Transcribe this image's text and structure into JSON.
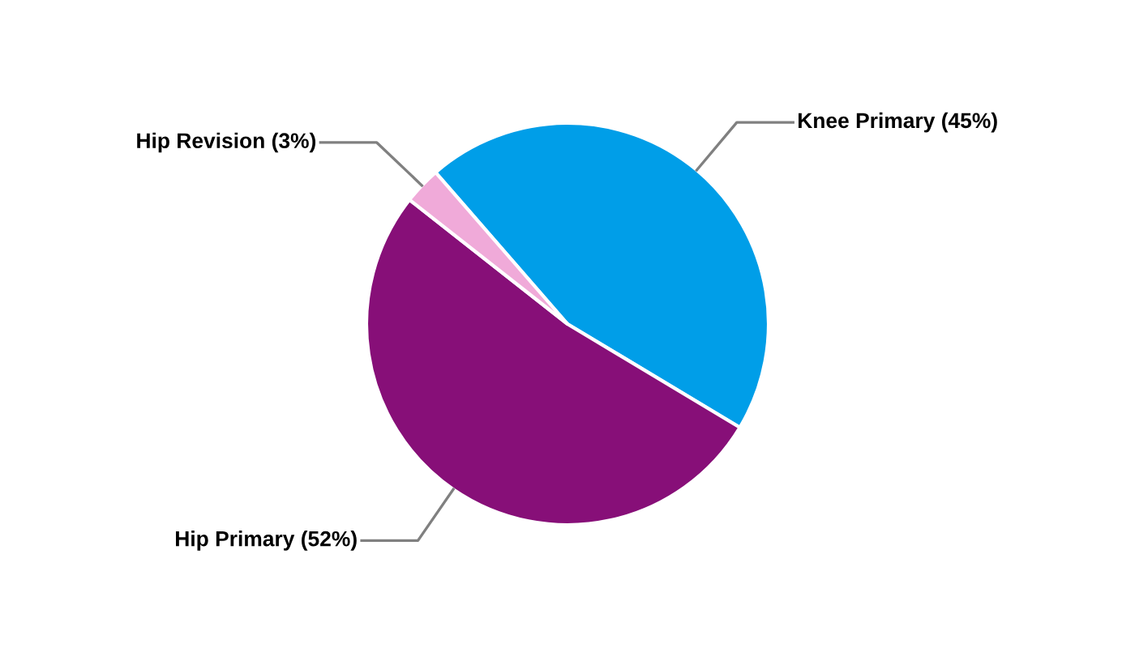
{
  "chart_data": {
    "type": "pie",
    "categories": [
      "Knee Primary (45%)",
      "Hip Primary (52%)",
      "Hip Revision (3%)"
    ],
    "values": [
      45,
      52,
      3
    ],
    "colors": [
      "#009ee8",
      "#870f78",
      "#f0aad9"
    ]
  }
}
